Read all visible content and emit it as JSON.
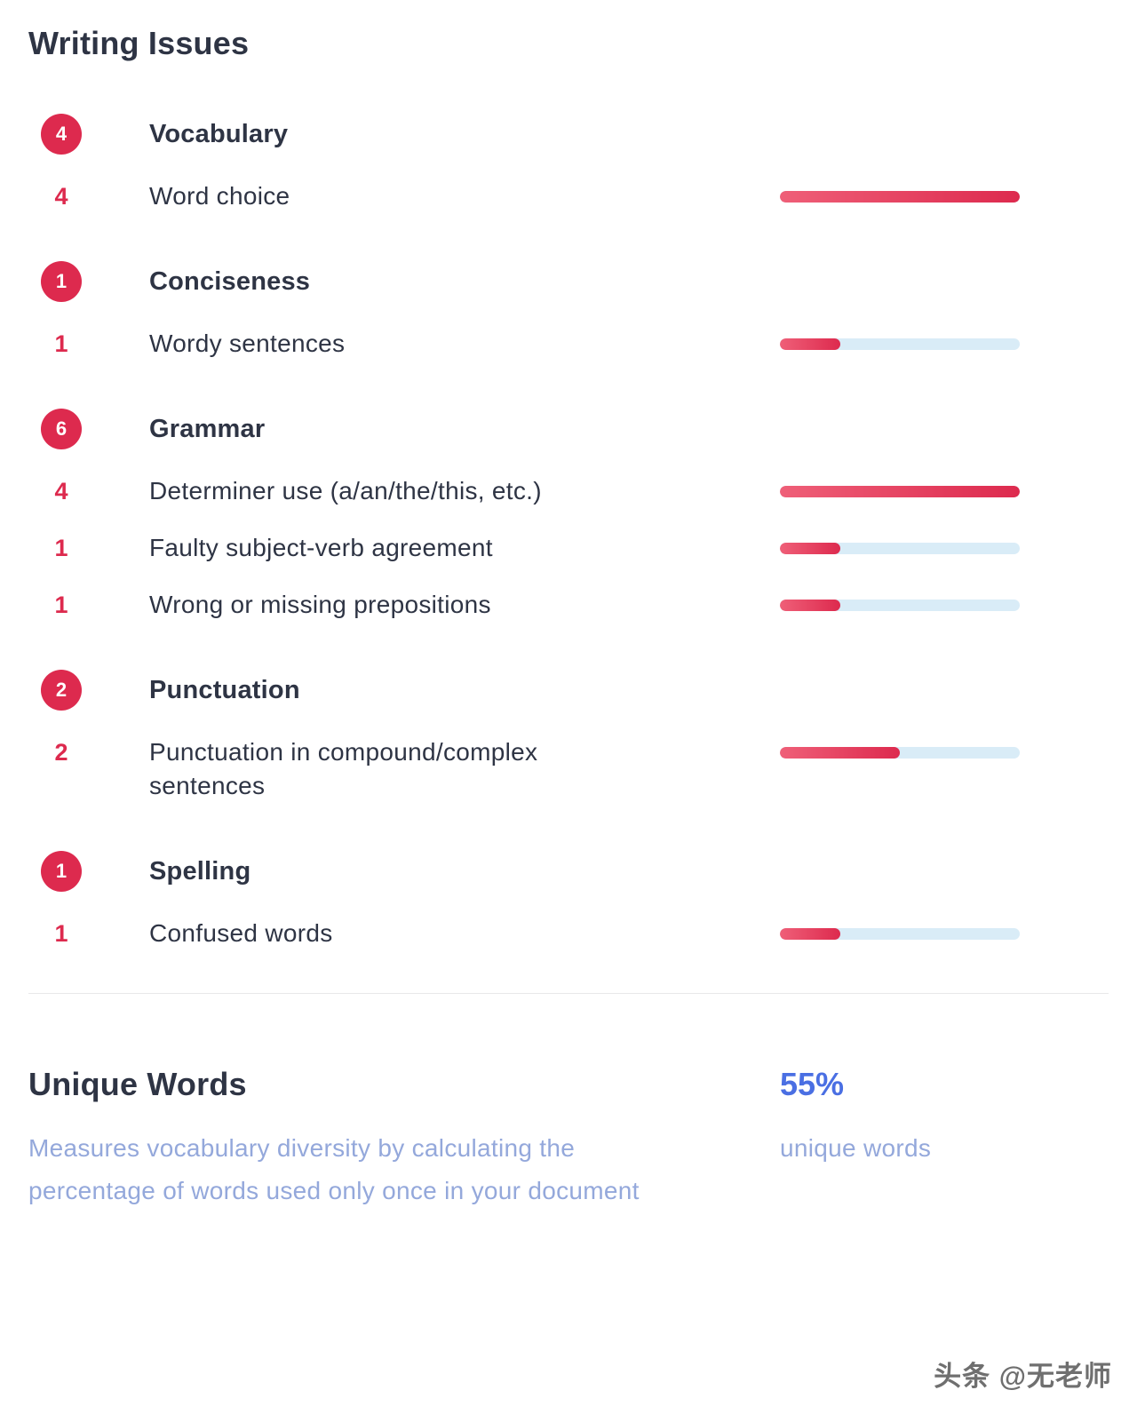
{
  "title": "Writing Issues",
  "colors": {
    "crimson": "#dd2a4e",
    "crimson_light": "#ef5f78",
    "track": "#d9ecf7",
    "dark": "#2e3444",
    "blue": "#4a6fe3",
    "light_blue": "#94a8db"
  },
  "bar_max": 4,
  "categories": [
    {
      "name": "Vocabulary",
      "count": 4,
      "items": [
        {
          "label": "Word choice",
          "count": 4,
          "bar_percent": 100
        }
      ]
    },
    {
      "name": "Conciseness",
      "count": 1,
      "items": [
        {
          "label": "Wordy sentences",
          "count": 1,
          "bar_percent": 25
        }
      ]
    },
    {
      "name": "Grammar",
      "count": 6,
      "items": [
        {
          "label": "Determiner use (a/an/the/this, etc.)",
          "count": 4,
          "bar_percent": 100
        },
        {
          "label": "Faulty subject-verb agreement",
          "count": 1,
          "bar_percent": 25
        },
        {
          "label": "Wrong or missing prepositions",
          "count": 1,
          "bar_percent": 25
        }
      ]
    },
    {
      "name": "Punctuation",
      "count": 2,
      "items": [
        {
          "label": "Punctuation in compound/complex sentences",
          "count": 2,
          "bar_percent": 50
        }
      ]
    },
    {
      "name": "Spelling",
      "count": 1,
      "items": [
        {
          "label": "Confused words",
          "count": 1,
          "bar_percent": 25
        }
      ]
    }
  ],
  "unique_words": {
    "heading": "Unique Words",
    "description": "Measures vocabulary diversity by calculating the percentage of words used only once in your document",
    "value": "55%",
    "value_label": "unique words"
  },
  "watermark": "头条 @无老师"
}
